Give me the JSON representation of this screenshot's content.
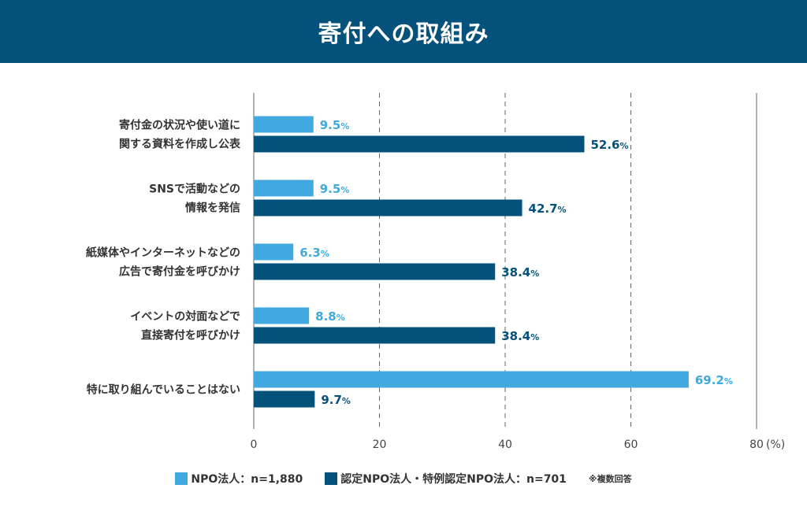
{
  "chart_data": {
    "type": "bar",
    "orientation": "horizontal",
    "title": "寄付への取組み",
    "categories": [
      [
        "寄付金の状況や使い道に",
        "関する資料を作成し公表"
      ],
      [
        "SNSで活動などの",
        "情報を発信"
      ],
      [
        "紙媒体やインターネットなどの",
        "広告で寄付金を呼びかけ"
      ],
      [
        "イベントの対面などで",
        "直接寄付を呼びかけ"
      ],
      [
        "特に取り組んでいることはない"
      ]
    ],
    "series": [
      {
        "name": "NPO法人：n=1,880",
        "color": "#41a9df",
        "values": [
          9.5,
          9.5,
          6.3,
          8.8,
          69.2
        ]
      },
      {
        "name": "認定NPO法人・特例認定NPO法人：n=701",
        "color": "#04527c",
        "values": [
          52.6,
          42.7,
          38.4,
          38.4,
          9.7
        ]
      }
    ],
    "value_suffix": "%",
    "xlim": [
      0,
      80
    ],
    "xticks": [
      0,
      20,
      40,
      60,
      80
    ],
    "xunit": "(%)",
    "grid": "dashed vertical",
    "legend_position": "bottom",
    "note": "※複数回答"
  }
}
